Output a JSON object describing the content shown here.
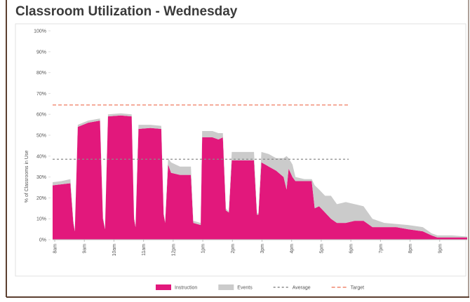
{
  "chart_data": {
    "type": "stacked_area",
    "title": "Classroom Utilization - Wednesday",
    "y_label": "% of Classrooms in Use",
    "x": [
      8.0,
      8.3,
      8.6,
      8.7,
      8.75,
      8.85,
      9.2,
      9.6,
      9.7,
      9.77,
      9.87,
      10.3,
      10.67,
      10.75,
      10.8,
      10.9,
      11.3,
      11.67,
      11.75,
      11.8,
      11.9,
      12.0,
      12.3,
      12.67,
      12.75,
      13.0,
      13.05,
      13.4,
      13.6,
      13.75,
      13.85,
      13.95,
      14.05,
      14.5,
      14.8,
      14.9,
      14.95,
      15.05,
      15.3,
      15.55,
      15.8,
      15.9,
      15.97,
      16.1,
      16.2,
      16.5,
      16.75,
      16.85,
      17.0,
      17.2,
      17.4,
      17.6,
      17.9,
      18.2,
      18.5,
      18.8,
      19.2,
      19.6,
      20.0,
      20.5,
      20.8,
      21.0,
      21.5,
      22.0
    ],
    "series": [
      {
        "name": "Instruction",
        "color": "#e2187c",
        "values": [
          26,
          26.5,
          27,
          8,
          4,
          54,
          56,
          57,
          10,
          5,
          59,
          59.5,
          59,
          10,
          6,
          53,
          53.5,
          53,
          12,
          8,
          36,
          32,
          31,
          31,
          8,
          7,
          49,
          49,
          48,
          49,
          14,
          13,
          38,
          38,
          38,
          12,
          12,
          37,
          35,
          33,
          30,
          24,
          34,
          30,
          28,
          28,
          28,
          15,
          16,
          13,
          10,
          8,
          8,
          9,
          9,
          6,
          6,
          6,
          5,
          4,
          2,
          1,
          1,
          1
        ]
      },
      {
        "name": "Events",
        "color": "#cbcbcb",
        "values": [
          1.5,
          1.5,
          2,
          1,
          0.5,
          1,
          1,
          1,
          1,
          0.5,
          1,
          1,
          1,
          1,
          0.5,
          2,
          1.5,
          1.5,
          1,
          0.5,
          3,
          5,
          4,
          4,
          1,
          1,
          3,
          3,
          3,
          2,
          1,
          0.5,
          4,
          4,
          4,
          1,
          0.5,
          5,
          6,
          6,
          9,
          16,
          5,
          6,
          2,
          1,
          1,
          11,
          8,
          8,
          11,
          9,
          10,
          8,
          7,
          4,
          2,
          1.5,
          2,
          2,
          1,
          1,
          1,
          0.5
        ]
      }
    ],
    "reference_lines": [
      {
        "name": "Average",
        "value": 38.5,
        "color": "#8a8a8a",
        "x_range": [
          8,
          18
        ]
      },
      {
        "name": "Target",
        "value": 64.5,
        "color": "#f0866e",
        "x_range": [
          8,
          18
        ]
      }
    ],
    "xlim": [
      8,
      22
    ],
    "xticks": [
      {
        "value": 8,
        "label": "8am"
      },
      {
        "value": 9,
        "label": "9am"
      },
      {
        "value": 10,
        "label": "10am"
      },
      {
        "value": 11,
        "label": "11am"
      },
      {
        "value": 12,
        "label": "12pm"
      },
      {
        "value": 13,
        "label": "1pm"
      },
      {
        "value": 14,
        "label": "2pm"
      },
      {
        "value": 15,
        "label": "3pm"
      },
      {
        "value": 16,
        "label": "4pm"
      },
      {
        "value": 17,
        "label": "5pm"
      },
      {
        "value": 18,
        "label": "6pm"
      },
      {
        "value": 19,
        "label": "7pm"
      },
      {
        "value": 20,
        "label": "8pm"
      },
      {
        "value": 21,
        "label": "9pm"
      }
    ],
    "ylim": [
      0,
      100
    ],
    "yticks": [
      {
        "value": 0,
        "label": "0%"
      },
      {
        "value": 10,
        "label": "10%"
      },
      {
        "value": 20,
        "label": "20%"
      },
      {
        "value": 30,
        "label": "30%"
      },
      {
        "value": 40,
        "label": "40%"
      },
      {
        "value": 50,
        "label": "50%"
      },
      {
        "value": 60,
        "label": "60%"
      },
      {
        "value": 70,
        "label": "70%"
      },
      {
        "value": 80,
        "label": "80%"
      },
      {
        "value": 90,
        "label": "90%"
      },
      {
        "value": 100,
        "label": "100%"
      }
    ],
    "grid": false,
    "legend": "bottom"
  }
}
